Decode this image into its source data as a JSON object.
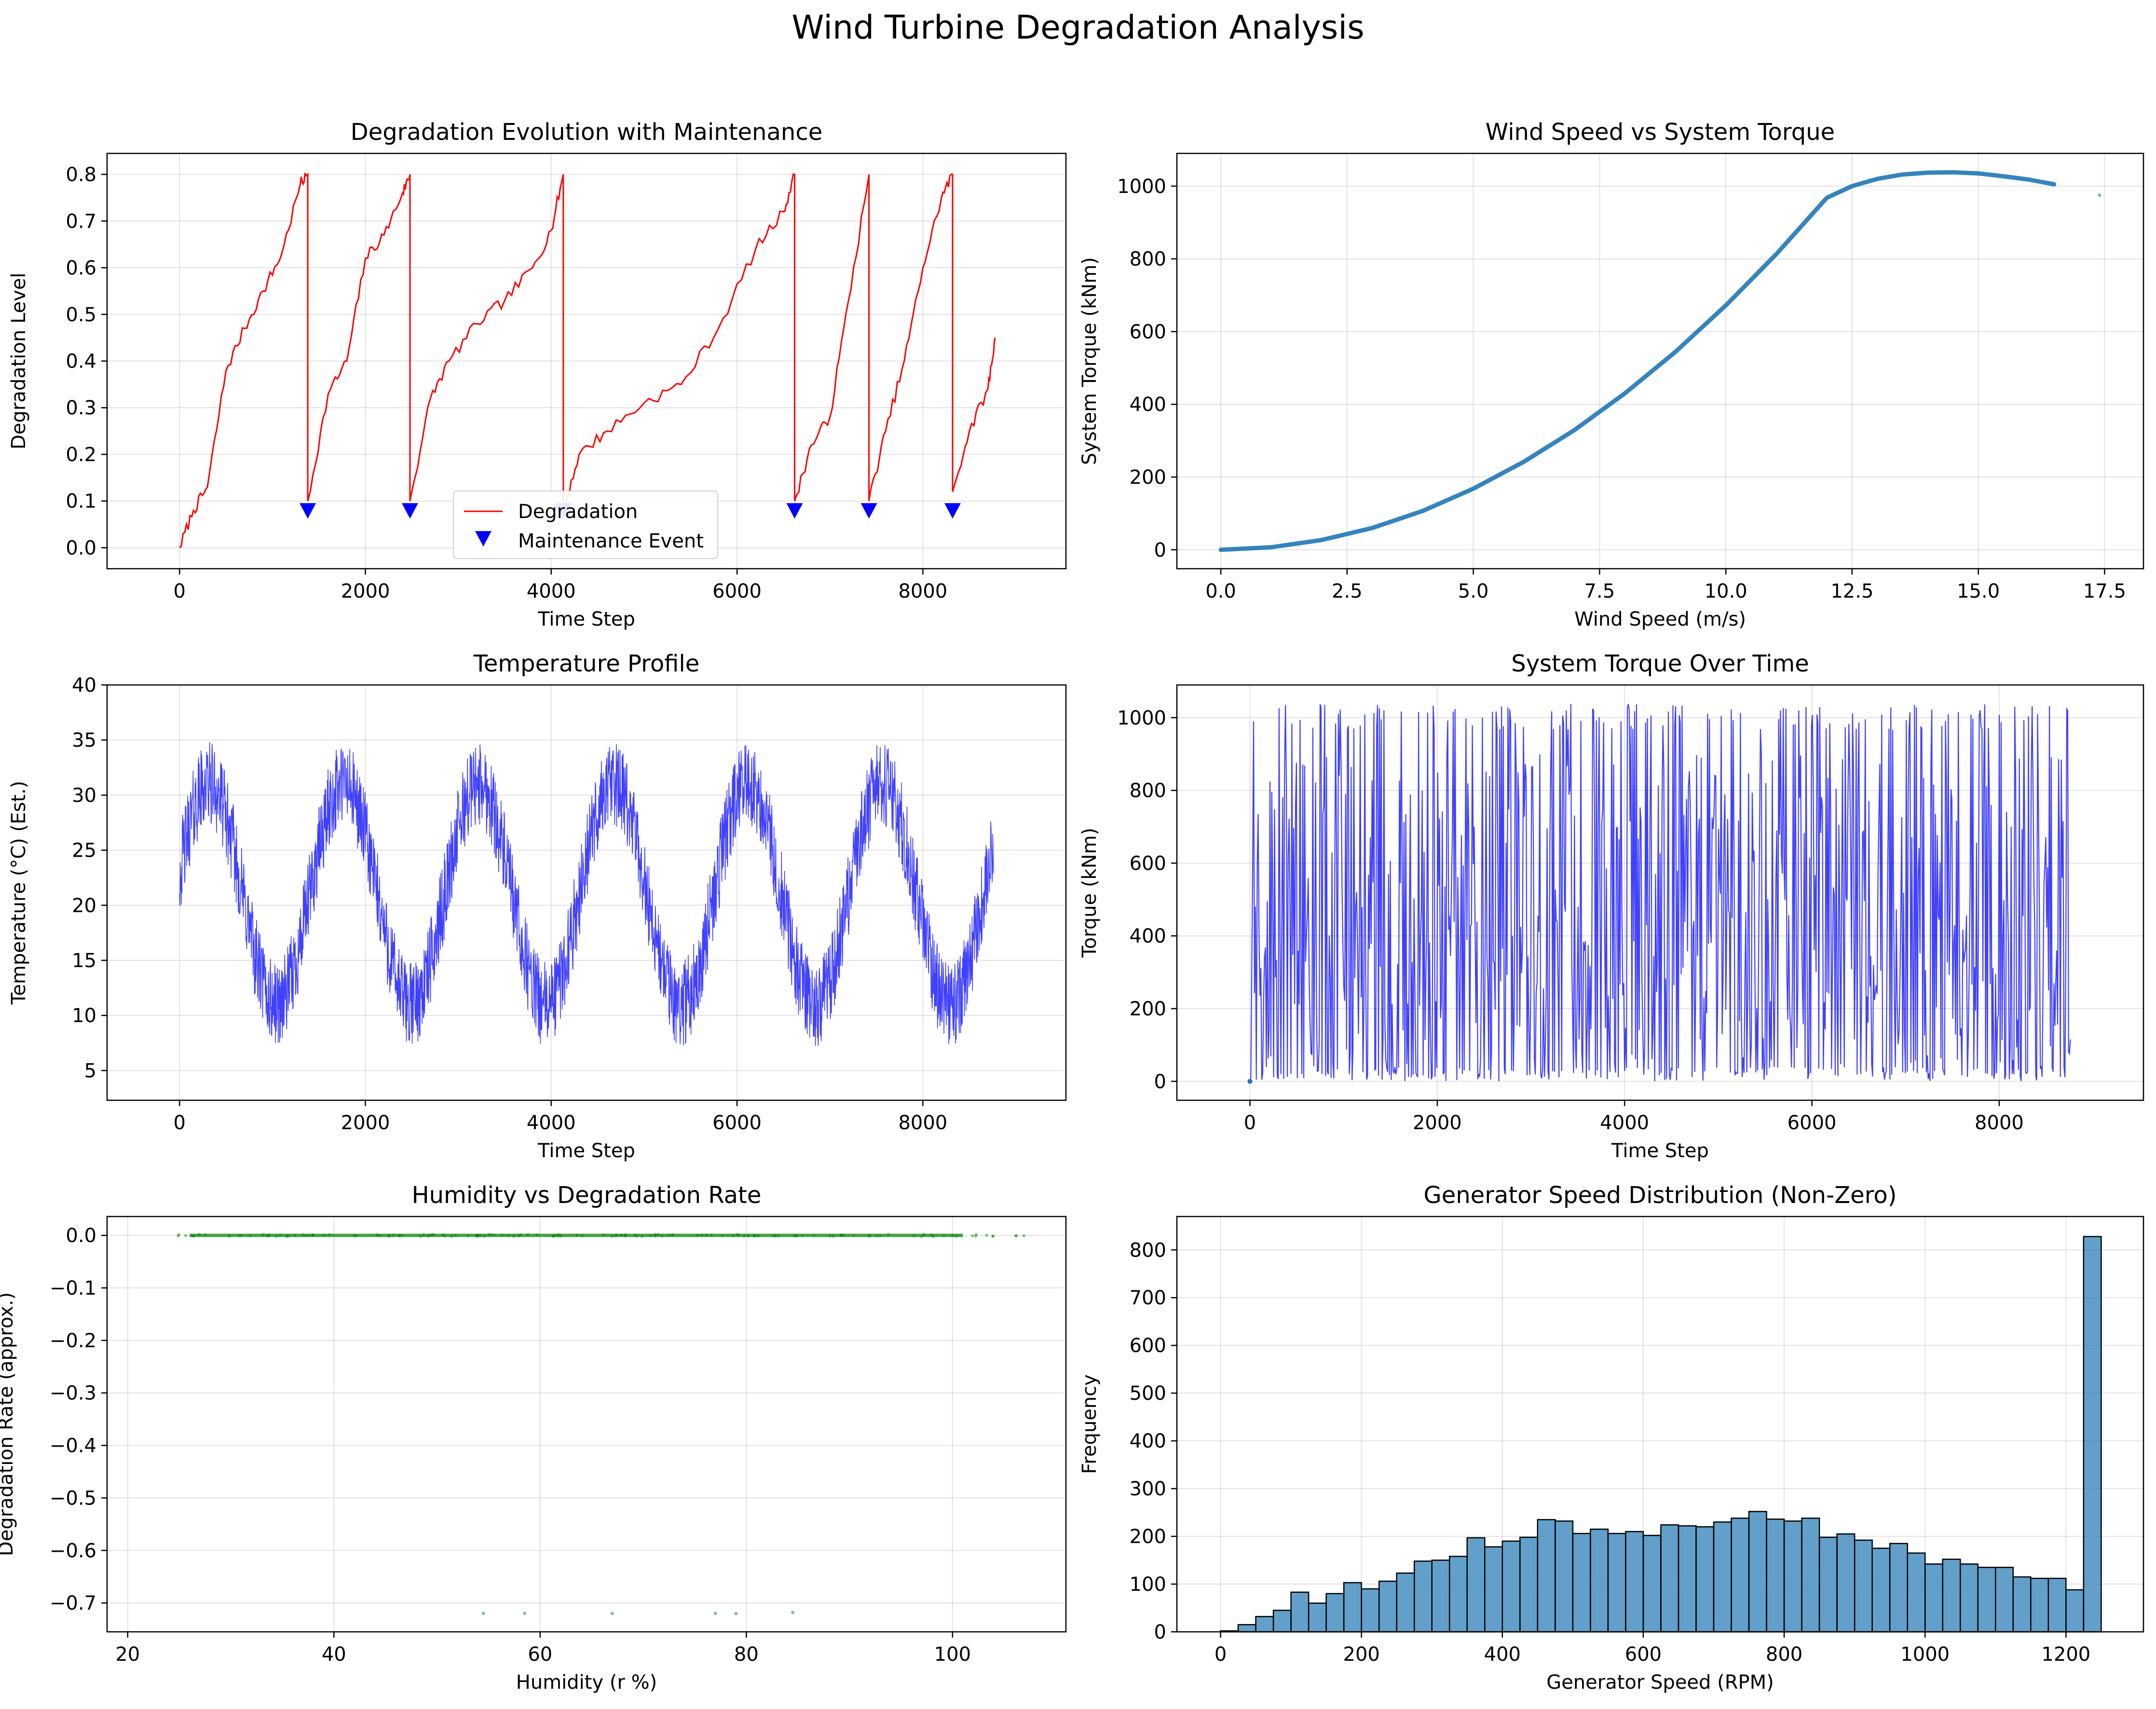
{
  "figure": {
    "title": "Wind Turbine Degradation Analysis"
  },
  "chart_data": [
    {
      "id": "degradation",
      "type": "line",
      "title": "Degradation Evolution with Maintenance",
      "xlabel": "Time Step",
      "ylabel": "Degradation Level",
      "xlim": [
        -780,
        9540
      ],
      "ylim": [
        -0.045,
        0.845
      ],
      "xticks": [
        0,
        2000,
        4000,
        6000,
        8000
      ],
      "yticks": [
        0.0,
        0.1,
        0.2,
        0.3,
        0.4,
        0.5,
        0.6,
        0.7,
        0.8
      ],
      "ytick_labels": [
        "0.0",
        "0.1",
        "0.2",
        "0.3",
        "0.4",
        "0.5",
        "0.6",
        "0.7",
        "0.8"
      ],
      "grid": true,
      "legend": {
        "placement": "lower-center",
        "entries": [
          "Degradation",
          "Maintenance Event"
        ]
      },
      "series": [
        {
          "name": "Degradation",
          "color": "#ff0000",
          "x": [
            0,
            150,
            300,
            500,
            700,
            900,
            1100,
            1300,
            1380,
            1380,
            1600,
            1800,
            2000,
            2200,
            2400,
            2480,
            2480,
            2700,
            2900,
            3200,
            3500,
            3800,
            4000,
            4130,
            4130,
            4300,
            4600,
            5000,
            5400,
            5800,
            6200,
            6500,
            6620,
            6620,
            6800,
            7000,
            7200,
            7420,
            7420,
            7600,
            7800,
            8000,
            8200,
            8320,
            8320,
            8500,
            8700,
            8780
          ],
          "y": [
            0.0,
            0.08,
            0.13,
            0.38,
            0.47,
            0.55,
            0.63,
            0.78,
            0.8,
            0.1,
            0.33,
            0.4,
            0.62,
            0.67,
            0.76,
            0.8,
            0.1,
            0.32,
            0.4,
            0.48,
            0.53,
            0.6,
            0.68,
            0.8,
            0.08,
            0.2,
            0.25,
            0.31,
            0.35,
            0.47,
            0.64,
            0.72,
            0.8,
            0.1,
            0.22,
            0.28,
            0.53,
            0.8,
            0.1,
            0.25,
            0.4,
            0.6,
            0.75,
            0.8,
            0.12,
            0.25,
            0.34,
            0.45
          ]
        },
        {
          "name": "Maintenance Event",
          "color": "#0000ff",
          "marker": "triangle-down",
          "x": [
            1380,
            2480,
            4130,
            6620,
            7420,
            8320
          ],
          "y": [
            0.08,
            0.08,
            0.08,
            0.08,
            0.08,
            0.08
          ]
        }
      ]
    },
    {
      "id": "wind-torque",
      "type": "scatter",
      "title": "Wind Speed vs System Torque",
      "xlabel": "Wind Speed (m/s)",
      "ylabel": "System Torque (kNm)",
      "xlim": [
        -0.87,
        18.27
      ],
      "ylim": [
        -52,
        1090
      ],
      "xticks": [
        0.0,
        2.5,
        5.0,
        7.5,
        10.0,
        12.5,
        15.0,
        17.5
      ],
      "xtick_labels": [
        "0.0",
        "2.5",
        "5.0",
        "7.5",
        "10.0",
        "12.5",
        "15.0",
        "17.5"
      ],
      "yticks": [
        0,
        200,
        400,
        600,
        800,
        1000
      ],
      "grid": true,
      "color": "#1f77b4",
      "curve": {
        "x": [
          0.0,
          1.0,
          2.0,
          3.0,
          4.0,
          5.0,
          6.0,
          7.0,
          8.0,
          9.0,
          10.0,
          11.0,
          12.0,
          12.5,
          13.0,
          13.5,
          14.0,
          14.5,
          15.0,
          15.5,
          16.0,
          16.5
        ],
        "y": [
          0,
          7,
          27,
          60,
          107,
          168,
          242,
          329,
          430,
          544,
          672,
          813,
          968,
          1000,
          1020,
          1032,
          1037,
          1038,
          1035,
          1027,
          1018,
          1005
        ]
      },
      "outliers": [
        {
          "x": 17.4,
          "y": 975
        }
      ]
    },
    {
      "id": "temperature",
      "type": "line",
      "title": "Temperature Profile",
      "xlabel": "Time Step",
      "ylabel": "Temperature (°C) (Est.)",
      "xlim": [
        -780,
        9540
      ],
      "ylim": [
        2.3,
        40.0
      ],
      "xticks": [
        0,
        2000,
        4000,
        6000,
        8000
      ],
      "yticks": [
        5,
        10,
        15,
        20,
        25,
        30,
        35,
        40
      ],
      "grid": true,
      "color": "#0000ff",
      "series": [
        {
          "mean": 21.0,
          "amplitude": 10.0,
          "period": 1450,
          "noise": 3.0,
          "x_range": [
            0,
            8760
          ],
          "min_value": 4.0,
          "max_value": 38.5
        }
      ]
    },
    {
      "id": "torque-time",
      "type": "line",
      "title": "System Torque Over Time",
      "xlabel": "Time Step",
      "ylabel": "Torque (kNm)",
      "xlim": [
        -780,
        9540
      ],
      "ylim": [
        -52,
        1090
      ],
      "xticks": [
        0,
        2000,
        4000,
        6000,
        8000
      ],
      "yticks": [
        0,
        200,
        400,
        600,
        800,
        1000
      ],
      "grid": true,
      "color": "#0000ff",
      "series": [
        {
          "x_range": [
            0,
            8760
          ],
          "min_value": 0,
          "max_value": 1038
        }
      ]
    },
    {
      "id": "humidity",
      "type": "scatter",
      "title": "Humidity vs Degradation Rate",
      "xlabel": "Humidity (r %)",
      "ylabel": "Degradation Rate (approx.)",
      "xlim": [
        18,
        111
      ],
      "ylim": [
        -0.755,
        0.036
      ],
      "xticks": [
        20,
        40,
        60,
        80,
        100
      ],
      "yticks": [
        0.0,
        -0.1,
        -0.2,
        -0.3,
        -0.4,
        -0.5,
        -0.6,
        -0.7
      ],
      "ytick_labels": [
        "0.0",
        "−0.1",
        "−0.2",
        "−0.3",
        "−0.4",
        "−0.5",
        "−0.6",
        "−0.7"
      ],
      "grid": true,
      "color": "#008000",
      "main_band": {
        "x_range": [
          22,
          107
        ],
        "y": 0.0
      },
      "outliers": [
        {
          "x": 54.5,
          "y": -0.72
        },
        {
          "x": 58.5,
          "y": -0.72
        },
        {
          "x": 67,
          "y": -0.72
        },
        {
          "x": 77,
          "y": -0.72
        },
        {
          "x": 79,
          "y": -0.72
        },
        {
          "x": 84.5,
          "y": -0.718
        }
      ]
    },
    {
      "id": "gen-speed",
      "type": "bar",
      "title": "Generator Speed Distribution (Non-Zero)",
      "xlabel": "Generator Speed (RPM)",
      "ylabel": "Frequency",
      "xlim": [
        -62,
        1310
      ],
      "ylim": [
        0,
        870
      ],
      "xticks": [
        0,
        200,
        400,
        600,
        800,
        1000,
        1200
      ],
      "yticks": [
        0,
        100,
        200,
        300,
        400,
        500,
        600,
        700,
        800
      ],
      "grid": true,
      "color": "#1f77b4",
      "bin_start": 0,
      "bin_width": 25,
      "values": [
        2,
        15,
        32,
        45,
        83,
        60,
        80,
        103,
        90,
        106,
        123,
        148,
        150,
        158,
        197,
        178,
        190,
        198,
        235,
        232,
        206,
        215,
        206,
        210,
        202,
        224,
        222,
        220,
        230,
        238,
        252,
        236,
        232,
        238,
        198,
        205,
        192,
        175,
        185,
        165,
        142,
        152,
        142,
        135,
        135,
        115,
        112,
        112,
        88,
        828
      ]
    }
  ]
}
